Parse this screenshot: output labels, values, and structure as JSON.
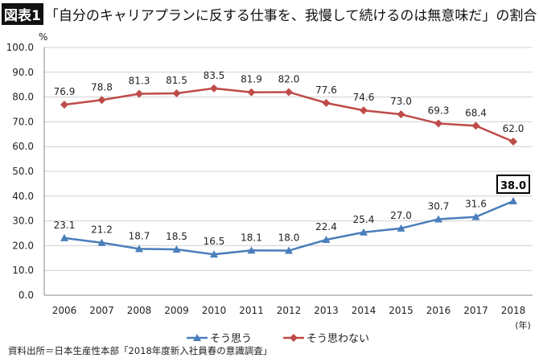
{
  "title": {
    "tag": "図表1",
    "text": "「自分のキャリアプランに反する仕事を、我慢して続けるのは無意味だ」の割合"
  },
  "source": "資料出所＝日本生産性本部「2018年度新入社員春の意識調査」",
  "chart_data": {
    "type": "line",
    "x": [
      "2006",
      "2007",
      "2008",
      "2009",
      "2010",
      "2011",
      "2012",
      "2013",
      "2014",
      "2015",
      "2016",
      "2017",
      "2018"
    ],
    "ylabel": "%",
    "xlabel": "(年)",
    "ylim": [
      0,
      100
    ],
    "yticks": [
      "0.0",
      "10.0",
      "20.0",
      "30.0",
      "40.0",
      "50.0",
      "60.0",
      "70.0",
      "80.0",
      "90.0",
      "100.0"
    ],
    "grid": true,
    "legend": "bottom",
    "series": [
      {
        "name": "そう思う",
        "color": "#4a7ebb",
        "marker": "triangle",
        "values": [
          23.1,
          21.2,
          18.7,
          18.5,
          16.5,
          18.1,
          18.0,
          22.4,
          25.4,
          27.0,
          30.7,
          31.6,
          38.0
        ],
        "labels": [
          "23.1",
          "21.2",
          "18.7",
          "18.5",
          "16.5",
          "18.1",
          "18.0",
          "22.4",
          "25.4",
          "27.0",
          "30.7",
          "31.6",
          "38.0"
        ]
      },
      {
        "name": "そう思わない",
        "color": "#be4b48",
        "marker": "diamond",
        "values": [
          76.9,
          78.8,
          81.3,
          81.5,
          83.5,
          81.9,
          82.0,
          77.6,
          74.6,
          73.0,
          69.3,
          68.4,
          62.0
        ],
        "labels": [
          "76.9",
          "78.8",
          "81.3",
          "81.5",
          "83.5",
          "81.9",
          "82.0",
          "77.6",
          "74.6",
          "73.0",
          "69.3",
          "68.4",
          "62.0"
        ]
      }
    ]
  }
}
